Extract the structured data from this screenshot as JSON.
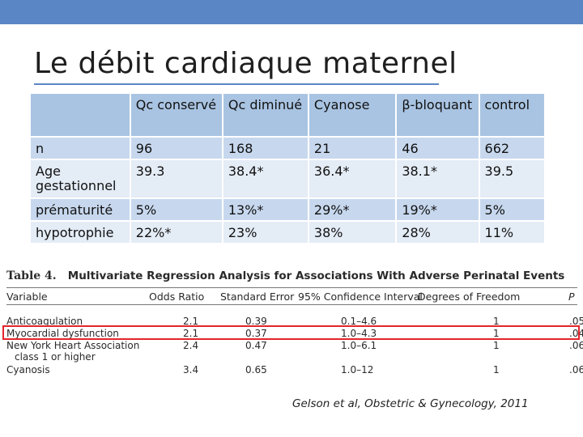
{
  "slide": {
    "title": "Le débit cardiaque maternel",
    "accent_color": "#5b86c5",
    "citation": "Gelson et al, Obstetric & Gynecology, 2011"
  },
  "comparison_table": {
    "headers": [
      "",
      "Qc conservé",
      "Qc diminué",
      "Cyanose",
      "β-bloquant",
      "control"
    ],
    "rows": [
      [
        "n",
        "96",
        "168",
        "21",
        "46",
        "662"
      ],
      [
        "Age gestationnel",
        "39.3",
        "38.4*",
        "36.4*",
        "38.1*",
        "39.5"
      ],
      [
        "prématurité",
        "5%",
        "13%*",
        "29%*",
        "19%*",
        "5%"
      ],
      [
        "hypotrophie",
        "22%*",
        "23%",
        "38%",
        "28%",
        "11%"
      ]
    ]
  },
  "regression_table": {
    "label": "Table 4.",
    "title": "Multivariate Regression Analysis for Associations With Adverse Perinatal Events",
    "columns": [
      "Variable",
      "Odds Ratio",
      "Standard Error",
      "95% Confidence Interval",
      "Degrees of Freedom",
      "P"
    ],
    "rows": [
      {
        "variable": "Anticoagulation",
        "odds_ratio": "2.1",
        "std_error": "0.39",
        "ci": "0.1–4.6",
        "df": "1",
        "p": ".05",
        "highlight": false
      },
      {
        "variable": "Myocardial dysfunction",
        "odds_ratio": "2.1",
        "std_error": "0.37",
        "ci": "1.0–4.3",
        "df": "1",
        "p": ".04",
        "highlight": true
      },
      {
        "variable": "New York Heart Association",
        "variable_line2": "class 1 or higher",
        "odds_ratio": "2.4",
        "std_error": "0.47",
        "ci": "1.0–6.1",
        "df": "1",
        "p": ".06",
        "highlight": false
      },
      {
        "variable": "Cyanosis",
        "odds_ratio": "3.4",
        "std_error": "0.65",
        "ci": "1.0–12",
        "df": "1",
        "p": ".06",
        "highlight": false
      }
    ],
    "highlight_color": "#e3252b"
  }
}
